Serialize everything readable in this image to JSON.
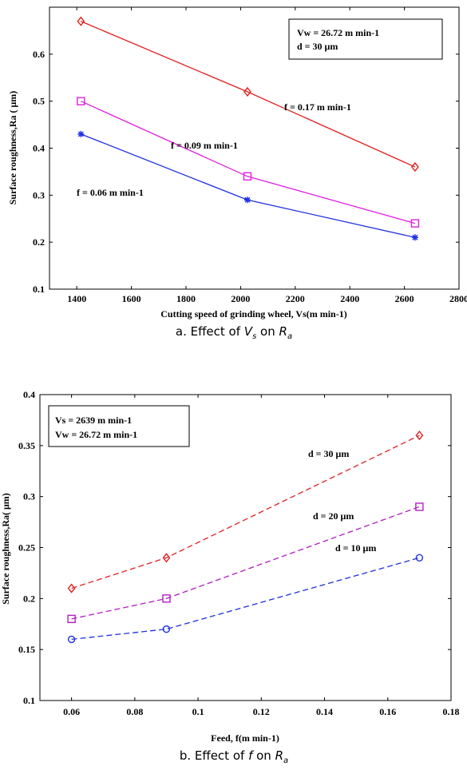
{
  "chart_data": [
    {
      "type": "line",
      "caption": {
        "prefix": "a. Effect of ",
        "v": "V",
        "vsub": "s",
        "mid": " on ",
        "r": "R",
        "rsub": "a"
      },
      "xlabel": "Cutting speed of grinding wheel, Vs(m min-1)",
      "ylabel": "Surface roughness,Ra ( μm)",
      "xlim": [
        1300,
        2800
      ],
      "ylim": [
        0.1,
        0.7
      ],
      "xticks": [
        "1400",
        "1600",
        "1800",
        "2000",
        "2200",
        "2400",
        "2600",
        "2800"
      ],
      "yticks": [
        "0.1",
        "0.2",
        "0.3",
        "0.4",
        "0.5",
        "0.6"
      ],
      "info_box": [
        "Vw = 26.72 m min-1",
        "d = 30 μm"
      ],
      "x": [
        1415,
        2025,
        2639
      ],
      "series": [
        {
          "name": "f = 0.17 m min-1",
          "values": [
            0.67,
            0.52,
            0.36
          ],
          "color": "#e02020",
          "marker": "diamond",
          "dashed": false
        },
        {
          "name": "f = 0.09 m min-1",
          "values": [
            0.5,
            0.34,
            0.24
          ],
          "color": "#e020e0",
          "marker": "square",
          "dashed": false
        },
        {
          "name": "f = 0.06 m min-1",
          "values": [
            0.43,
            0.29,
            0.21
          ],
          "color": "#2030e0",
          "marker": "star",
          "dashed": false
        }
      ]
    },
    {
      "type": "line",
      "caption": {
        "prefix": "b. Effect of ",
        "v": "f",
        "vsub": "",
        "mid": " on ",
        "r": "R",
        "rsub": "a"
      },
      "xlabel": "Feed, f(m min-1)",
      "ylabel": "Surface roughness,Ra( μm)",
      "xlim": [
        0.05,
        0.18
      ],
      "ylim": [
        0.1,
        0.4
      ],
      "xticks": [
        "0.06",
        "0.08",
        "0.1",
        "0.12",
        "0.14",
        "0.16",
        "0.18"
      ],
      "yticks": [
        "0.1",
        "0.15",
        "0.2",
        "0.25",
        "0.3",
        "0.35",
        "0.4"
      ],
      "info_box": [
        "Vs = 2639 m min-1",
        "Vw = 26.72 m min-1"
      ],
      "x": [
        0.06,
        0.09,
        0.17
      ],
      "series": [
        {
          "name": "d = 30 μm",
          "values": [
            0.21,
            0.24,
            0.36
          ],
          "color": "#e02020",
          "marker": "diamond",
          "dashed": true
        },
        {
          "name": "d = 20 μm",
          "values": [
            0.18,
            0.2,
            0.29
          ],
          "color": "#b020c0",
          "marker": "square",
          "dashed": true
        },
        {
          "name": "d = 10 μm",
          "values": [
            0.16,
            0.17,
            0.24
          ],
          "color": "#2030e0",
          "marker": "circle",
          "dashed": true
        }
      ]
    }
  ]
}
